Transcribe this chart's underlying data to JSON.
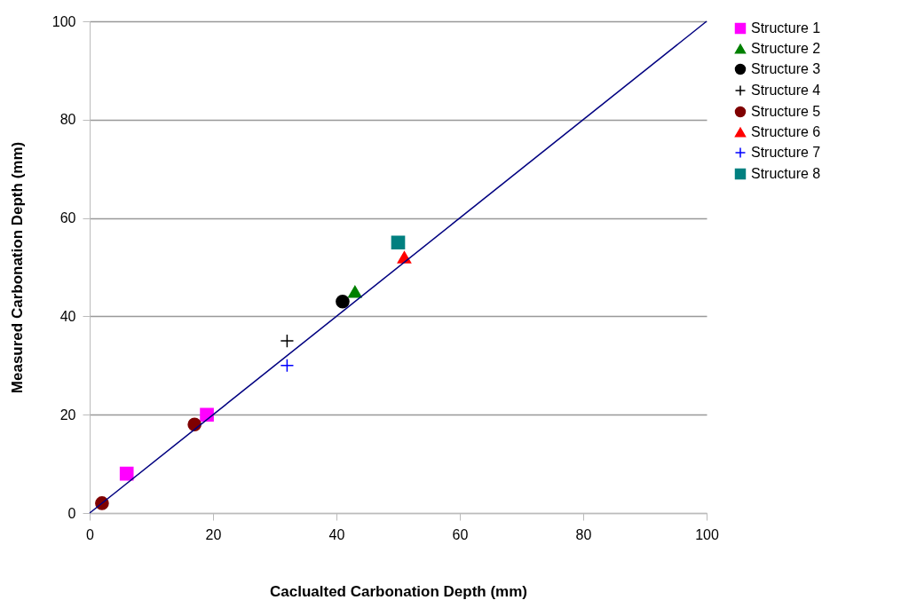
{
  "chart_data": {
    "type": "scatter",
    "xlabel": "Caclualted Carbonation Depth (mm)",
    "ylabel": "Measured Carbonation Depth (mm)",
    "xlim": [
      0,
      100
    ],
    "ylim": [
      0,
      100
    ],
    "xticks": [
      0,
      20,
      40,
      60,
      80,
      100
    ],
    "yticks": [
      0,
      20,
      40,
      60,
      80,
      100
    ],
    "grid": "y",
    "legend": "right",
    "series": [
      {
        "name": "Structure 1",
        "color": "#ff00ff",
        "marker": "square",
        "x": [
          6,
          19
        ],
        "values": [
          8,
          20
        ]
      },
      {
        "name": "Structure 2",
        "color": "#008000",
        "marker": "triangle",
        "x": [
          43
        ],
        "values": [
          45
        ]
      },
      {
        "name": "Structure 3",
        "color": "#000000",
        "marker": "circle",
        "x": [
          41
        ],
        "values": [
          43
        ]
      },
      {
        "name": "Structure 4",
        "color": "#000000",
        "marker": "cross",
        "x": [
          32
        ],
        "values": [
          35
        ]
      },
      {
        "name": "Structure 5",
        "color": "#7f0000",
        "marker": "circle",
        "x": [
          2,
          17
        ],
        "values": [
          2,
          18
        ]
      },
      {
        "name": "Structure 6",
        "color": "#ff0000",
        "marker": "triangle",
        "x": [
          51
        ],
        "values": [
          52
        ]
      },
      {
        "name": "Structure 7",
        "color": "#0000ff",
        "marker": "cross",
        "x": [
          32
        ],
        "values": [
          30
        ]
      },
      {
        "name": "Structure 8",
        "color": "#008080",
        "marker": "square",
        "x": [
          50
        ],
        "values": [
          55
        ]
      },
      {
        "type": "line",
        "color": "#000080",
        "x": [
          0,
          100
        ],
        "values": [
          0,
          100
        ]
      }
    ]
  }
}
